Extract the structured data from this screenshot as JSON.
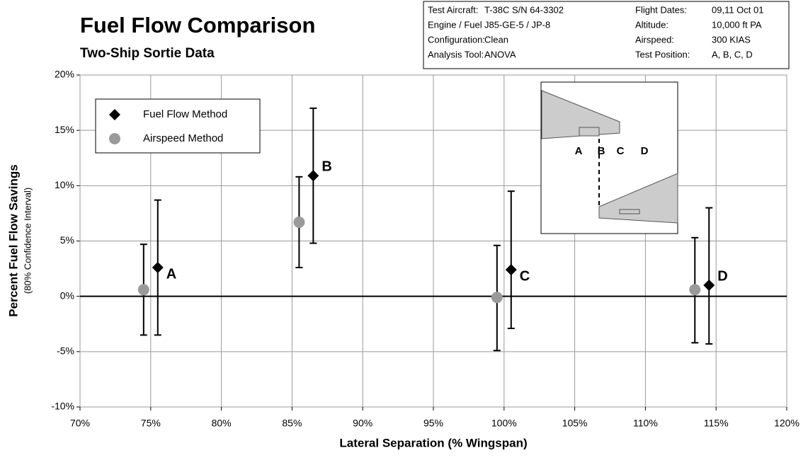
{
  "chart_data": {
    "type": "scatter",
    "title": "Fuel Flow Comparison",
    "subtitle": "Two-Ship Sortie Data",
    "info": [
      [
        "Test Aircraft:",
        "T-38C S/N 64-3302",
        "Flight Dates:",
        "09,11 Oct 01"
      ],
      [
        "Engine / Fuel",
        "J85-GE-5 / JP-8",
        "Altitude:",
        "10,000 ft PA"
      ],
      [
        "Configuration:",
        "Clean",
        "Airspeed:",
        "300 KIAS"
      ],
      [
        "Analysis Tool:",
        "ANOVA",
        "Test Position:",
        "A, B, C, D"
      ]
    ],
    "x_label": "Lateral Separation (% Wingspan)",
    "y_label": "Percent Fuel Flow Savings",
    "y_sublabel": "(80% Confidence Interval)",
    "xlim": [
      70,
      120
    ],
    "ylim": [
      -10,
      20
    ],
    "xticks": [
      {
        "value": 70,
        "label": "70%"
      },
      {
        "value": 75,
        "label": "75%"
      },
      {
        "value": 80,
        "label": "80%"
      },
      {
        "value": 85,
        "label": "85%"
      },
      {
        "value": 90,
        "label": "90%"
      },
      {
        "value": 95,
        "label": "95%"
      },
      {
        "value": 100,
        "label": "100%"
      },
      {
        "value": 105,
        "label": "105%"
      },
      {
        "value": 110,
        "label": "110%"
      },
      {
        "value": 115,
        "label": "115%"
      },
      {
        "value": 120,
        "label": "120%"
      }
    ],
    "yticks": [
      {
        "value": -10,
        "label": "-10%"
      },
      {
        "value": -5,
        "label": "-5%"
      },
      {
        "value": 0,
        "label": "0%"
      },
      {
        "value": 5,
        "label": "5%"
      },
      {
        "value": 10,
        "label": "10%"
      },
      {
        "value": 15,
        "label": "15%"
      },
      {
        "value": 20,
        "label": "20%"
      }
    ],
    "grid": true,
    "legend": "upper left",
    "series": [
      {
        "name": "Fuel Flow Method",
        "color": "#000000",
        "marker": "diamond",
        "x": [
          75.5,
          86.5,
          100.5,
          114.5
        ],
        "values": [
          2.6,
          10.9,
          2.4,
          1.0
        ],
        "lower": [
          -3.5,
          4.8,
          -2.9,
          -4.3
        ],
        "upper": [
          8.7,
          17.0,
          9.5,
          8.0
        ],
        "point_labels": [
          "A",
          "B",
          "C",
          "D"
        ]
      },
      {
        "name": "Airspeed Method",
        "color": "#9a9a9a",
        "marker": "circle",
        "x": [
          74.5,
          85.5,
          99.5,
          113.5
        ],
        "values": [
          0.6,
          6.7,
          -0.1,
          0.6
        ],
        "lower": [
          -3.5,
          2.6,
          -4.9,
          -4.2
        ],
        "upper": [
          4.7,
          10.8,
          4.6,
          5.3
        ]
      }
    ],
    "inset_labels": [
      "A",
      "B",
      "C",
      "D"
    ]
  }
}
